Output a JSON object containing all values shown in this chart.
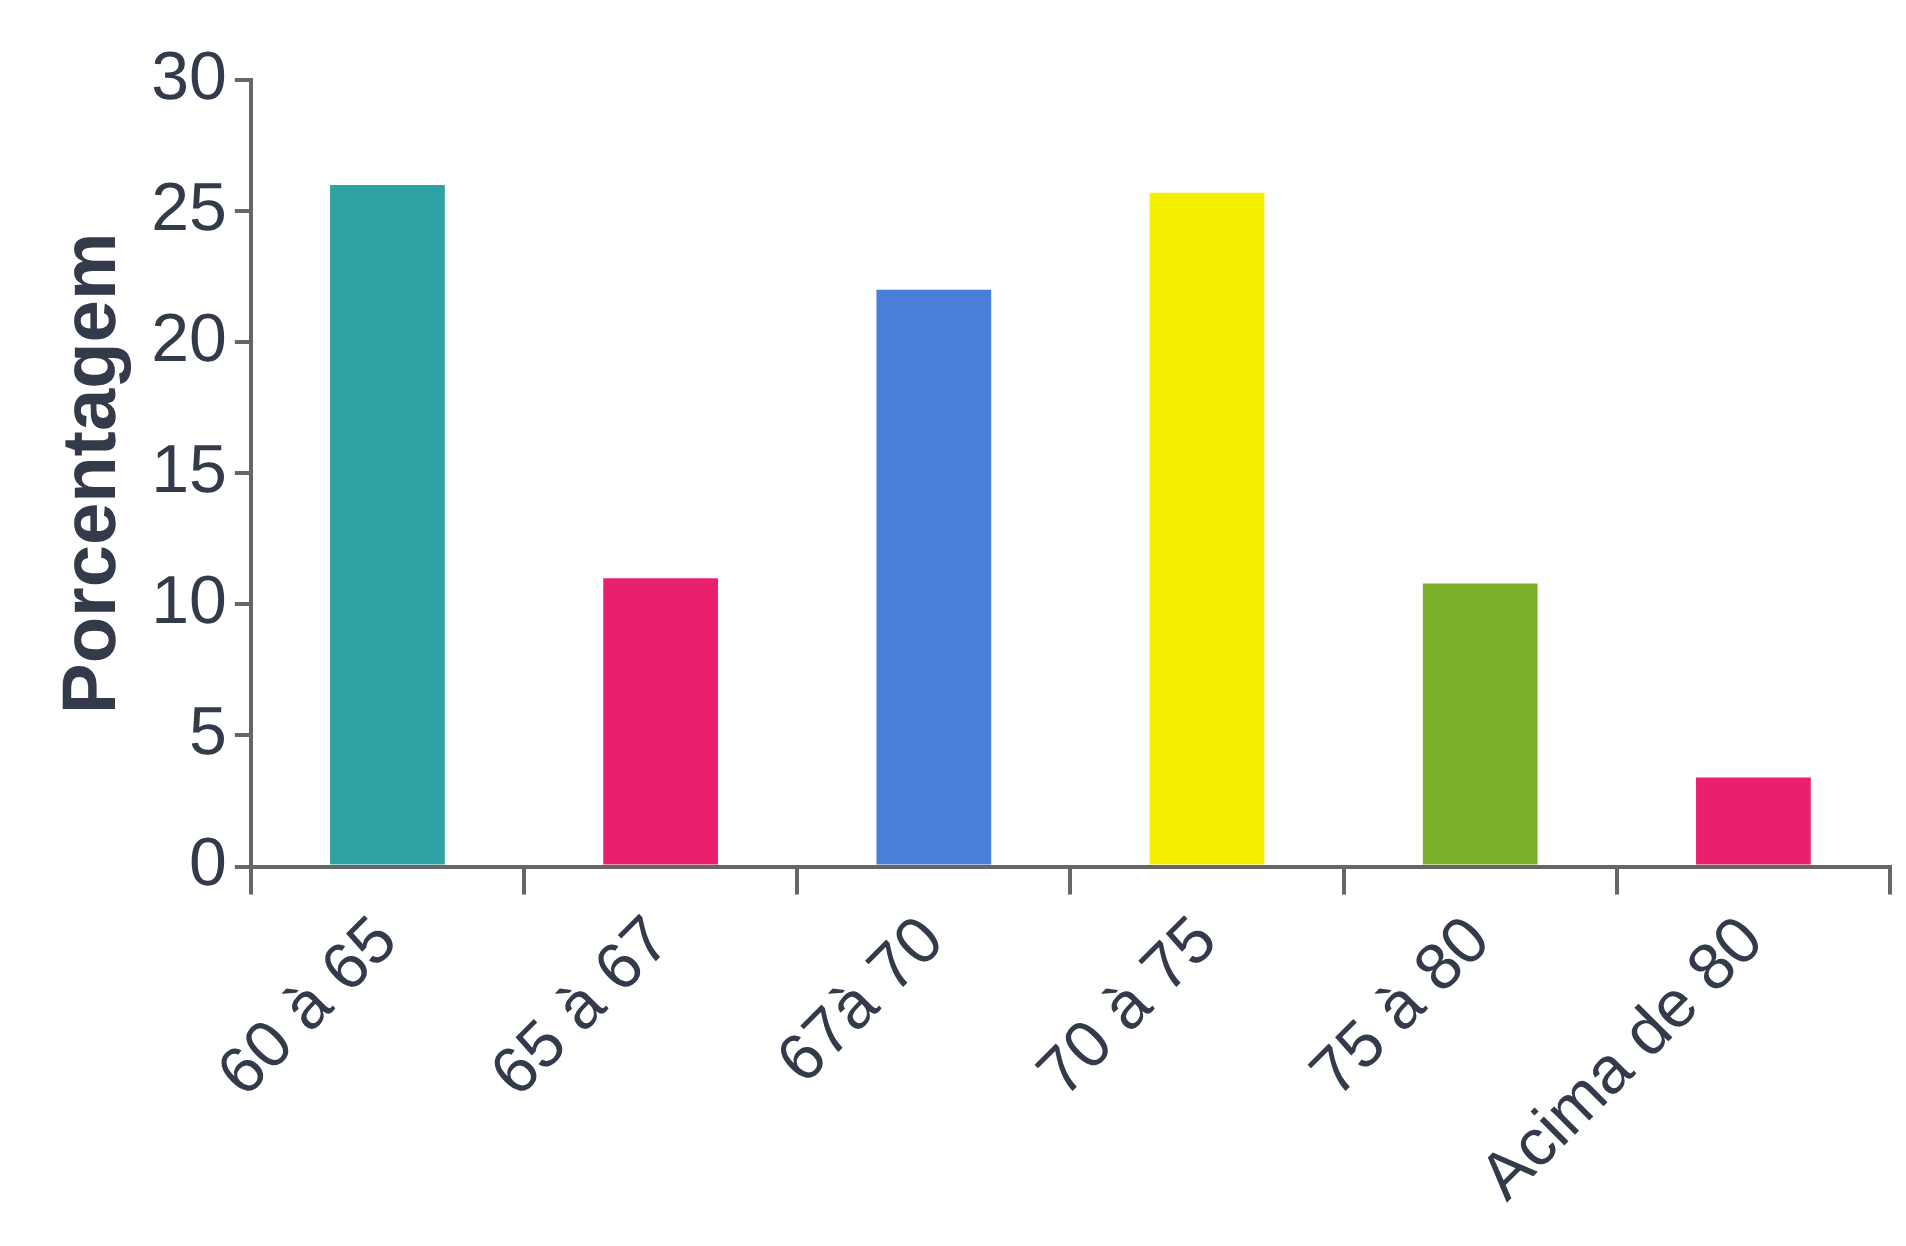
{
  "chart_data": {
    "type": "bar",
    "ylabel": "Porcentagem",
    "categories": [
      "60 à 65",
      "65 à 67",
      "67à 70",
      "70 à 75",
      "75 à 80",
      "Acima de 80"
    ],
    "values": [
      26,
      11,
      22,
      25.7,
      10.8,
      3.4
    ],
    "colors": [
      "#2fa3a3",
      "#e8206e",
      "#4a7fd8",
      "#f5f000",
      "#7cb02a",
      "#e8206e"
    ],
    "ylim": [
      0,
      30
    ],
    "yticks": [
      0,
      5,
      10,
      15,
      20,
      25,
      30
    ],
    "grid": false,
    "legend": false
  }
}
